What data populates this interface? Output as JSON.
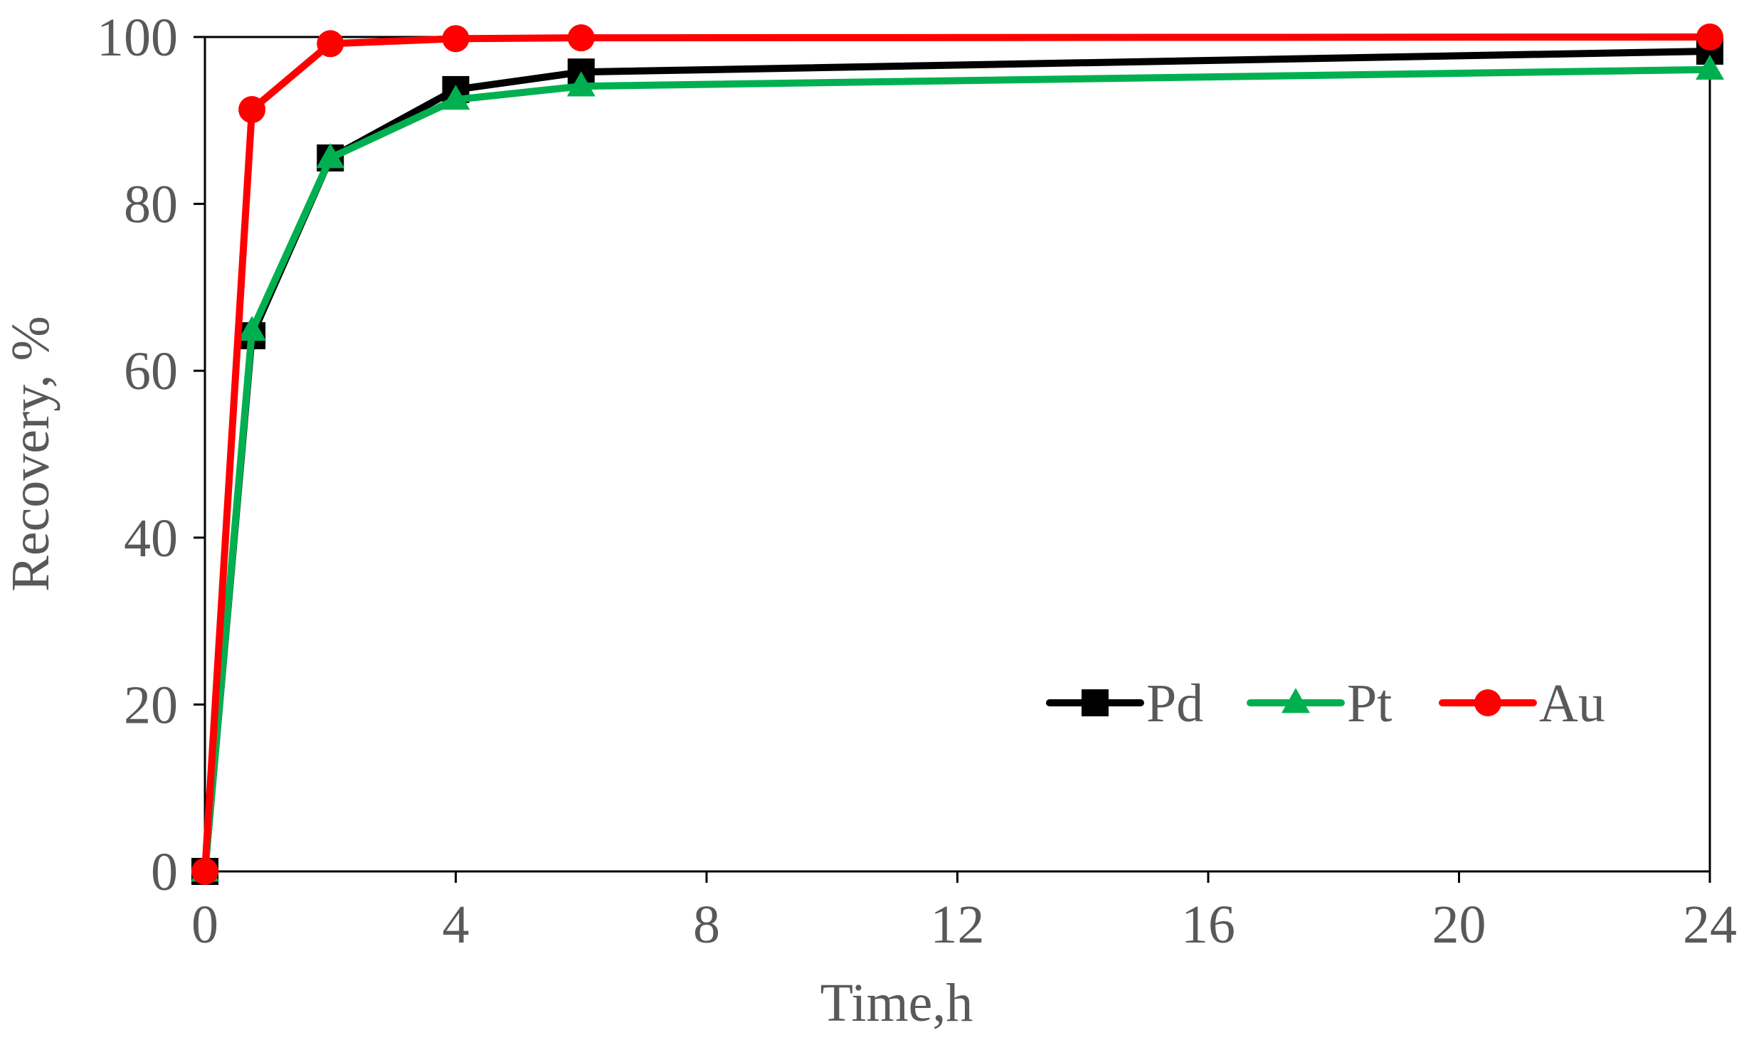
{
  "chart_data": {
    "type": "line",
    "xlabel": "Time,h",
    "ylabel": "Recovery, %",
    "xlim": [
      0,
      24
    ],
    "ylim": [
      0,
      100
    ],
    "xticks": [
      "0",
      "4",
      "8",
      "12",
      "16",
      "20",
      "24"
    ],
    "yticks": [
      "0",
      "20",
      "40",
      "60",
      "80",
      "100"
    ],
    "grid": false,
    "legend_position": "bottom-right",
    "series": [
      {
        "name": "Pd",
        "color": "#000000",
        "marker": "square",
        "x": [
          0,
          0.75,
          2,
          4,
          6,
          24
        ],
        "y": [
          0,
          64.2,
          85.5,
          93.7,
          95.8,
          98.3
        ]
      },
      {
        "name": "Pt",
        "color": "#00b050",
        "marker": "triangle",
        "x": [
          0,
          0.75,
          2,
          4,
          6,
          24
        ],
        "y": [
          0,
          64.8,
          85.5,
          92.5,
          94.1,
          96.1
        ]
      },
      {
        "name": "Au",
        "color": "#ff0000",
        "marker": "circle",
        "x": [
          0,
          0.75,
          2,
          4,
          6,
          24
        ],
        "y": [
          0,
          91.3,
          99.2,
          99.8,
          99.9,
          100
        ]
      }
    ]
  }
}
